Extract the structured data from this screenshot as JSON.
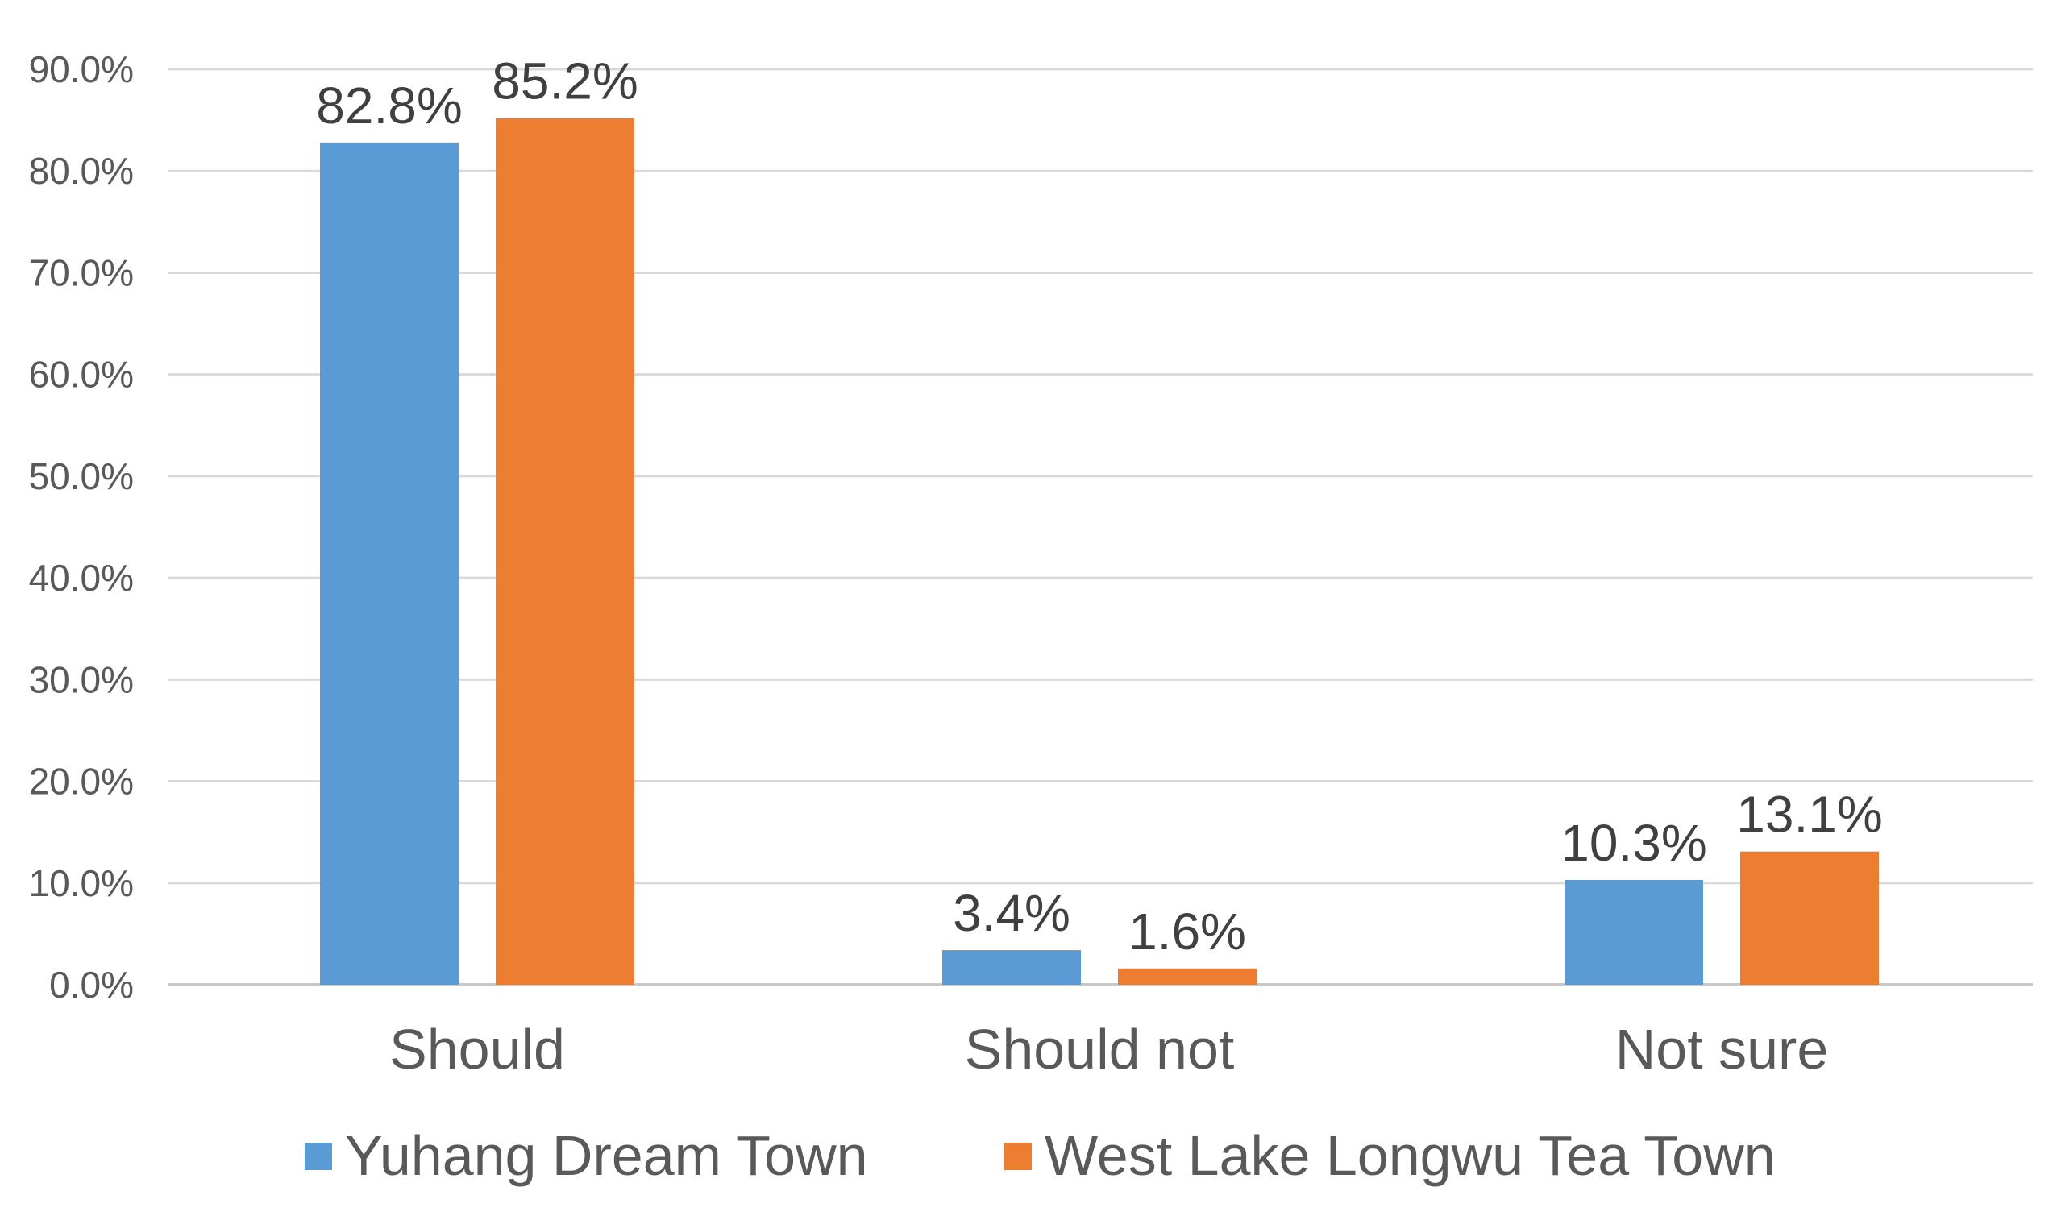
{
  "chart_data": {
    "type": "bar",
    "title": "",
    "xlabel": "",
    "ylabel": "",
    "ylim": [
      0,
      90
    ],
    "ytick_step": 10,
    "ytick_labels": [
      "0.0%",
      "10.0%",
      "20.0%",
      "30.0%",
      "40.0%",
      "50.0%",
      "60.0%",
      "70.0%",
      "80.0%",
      "90.0%"
    ],
    "grid": true,
    "legend_position": "bottom",
    "categories": [
      "Should",
      "Should not",
      "Not sure"
    ],
    "series": [
      {
        "name": "Yuhang Dream Town",
        "color": "#5B9BD5",
        "values": [
          82.8,
          3.4,
          10.3
        ],
        "labels": [
          "82.8%",
          "3.4%",
          "10.3%"
        ]
      },
      {
        "name": "West Lake Longwu Tea Town",
        "color": "#ED7D31",
        "values": [
          85.2,
          1.6,
          13.1
        ],
        "labels": [
          "85.2%",
          "1.6%",
          "13.1%"
        ]
      }
    ]
  }
}
